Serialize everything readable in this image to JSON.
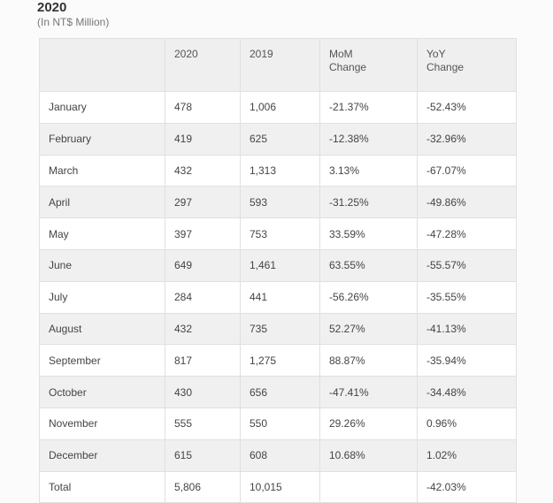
{
  "title": "2020",
  "subtitle": "(In NT$ Million)",
  "table": {
    "headers": {
      "month": "",
      "y2020": "2020",
      "y2019": "2019",
      "mom_line1": "MoM",
      "mom_line2": "Change",
      "yoy_line1": "YoY",
      "yoy_line2": "Change"
    },
    "rows": [
      {
        "month": "January",
        "y2020": "478",
        "y2019": "1,006",
        "mom": "-21.37%",
        "yoy": "-52.43%"
      },
      {
        "month": "February",
        "y2020": "419",
        "y2019": "625",
        "mom": "-12.38%",
        "yoy": "-32.96%"
      },
      {
        "month": "March",
        "y2020": "432",
        "y2019": "1,313",
        "mom": "3.13%",
        "yoy": "-67.07%"
      },
      {
        "month": "April",
        "y2020": "297",
        "y2019": "593",
        "mom": "-31.25%",
        "yoy": "-49.86%"
      },
      {
        "month": "May",
        "y2020": "397",
        "y2019": "753",
        "mom": "33.59%",
        "yoy": "-47.28%"
      },
      {
        "month": "June",
        "y2020": "649",
        "y2019": "1,461",
        "mom": "63.55%",
        "yoy": "-55.57%"
      },
      {
        "month": "July",
        "y2020": "284",
        "y2019": "441",
        "mom": "-56.26%",
        "yoy": "-35.55%"
      },
      {
        "month": "August",
        "y2020": "432",
        "y2019": "735",
        "mom": "52.27%",
        "yoy": "-41.13%"
      },
      {
        "month": "September",
        "y2020": "817",
        "y2019": "1,275",
        "mom": "88.87%",
        "yoy": "-35.94%"
      },
      {
        "month": "October",
        "y2020": "430",
        "y2019": "656",
        "mom": "-47.41%",
        "yoy": "-34.48%"
      },
      {
        "month": "November",
        "y2020": "555",
        "y2019": "550",
        "mom": "29.26%",
        "yoy": "0.96%"
      },
      {
        "month": "December",
        "y2020": "615",
        "y2019": "608",
        "mom": "10.68%",
        "yoy": "1.02%"
      },
      {
        "month": "Total",
        "y2020": "5,806",
        "y2019": "10,015",
        "mom": "",
        "yoy": "-42.03%"
      }
    ]
  }
}
